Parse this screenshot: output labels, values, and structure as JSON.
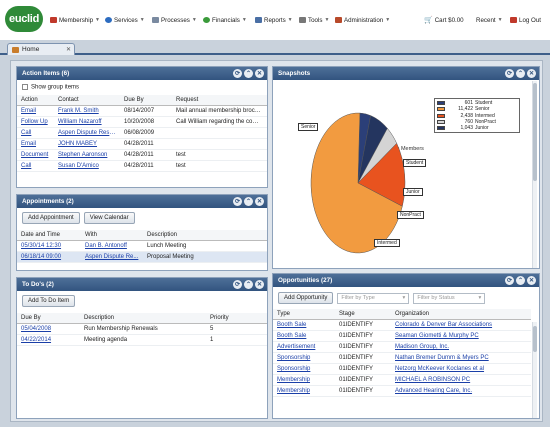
{
  "app": {
    "logo": "euclid"
  },
  "menu": {
    "items": [
      {
        "label": "Membership",
        "icon": "membership-icon",
        "color": "#c0392b"
      },
      {
        "label": "Services",
        "icon": "services-icon",
        "color": "#2d6cc0"
      },
      {
        "label": "Processes",
        "icon": "processes-icon",
        "color": "#7a8aa0"
      },
      {
        "label": "Financials",
        "icon": "financials-icon",
        "color": "#3a9a3a"
      },
      {
        "label": "Reports",
        "icon": "reports-icon",
        "color": "#4a6fa5"
      },
      {
        "label": "Tools",
        "icon": "tools-icon",
        "color": "#777"
      },
      {
        "label": "Administration",
        "icon": "administration-icon",
        "color": "#b84a2a"
      }
    ],
    "cart": "Cart $0.00",
    "recent": "Recent",
    "logout": "Log Out"
  },
  "tab": {
    "label": "Home"
  },
  "action_items": {
    "title": "Action Items (6)",
    "show_group": "Show group items",
    "columns": [
      "Action",
      "Contact",
      "Due By",
      "Request"
    ],
    "rows": [
      [
        "Email",
        "Frank M. Smith",
        "08/14/2007",
        "Mail annual membership broch..."
      ],
      [
        "Follow Up",
        "William Nazaroff",
        "10/20/2008",
        "Call William regarding the comm..."
      ],
      [
        "Call",
        "Aspen Dispute Reso...",
        "06/08/2009",
        ""
      ],
      [
        "Email",
        "JOHN MABEY",
        "04/28/2011",
        ""
      ],
      [
        "Document",
        "Stephen Aaronson",
        "04/28/2011",
        "test"
      ],
      [
        "Call",
        "Susan D'Amico",
        "04/28/2011",
        "test"
      ]
    ]
  },
  "appointments": {
    "title": "Appointments (2)",
    "add": "Add Appointment",
    "view": "View Calendar",
    "columns": [
      "Date and Time",
      "With",
      "Description"
    ],
    "rows": [
      [
        "05/30/14 12:30",
        "Dan B. Antonoff",
        "Lunch Meeting"
      ],
      [
        "06/18/14 09:00",
        "Aspen Dispute Re...",
        "Proposal Meeting"
      ]
    ]
  },
  "todos": {
    "title": "To Do's (2)",
    "add": "Add To Do Item",
    "columns": [
      "Due By",
      "Description",
      "Priority"
    ],
    "rows": [
      [
        "05/04/2008",
        "Run Membership Renewals",
        "5"
      ],
      [
        "04/22/2014",
        "Meeting agenda",
        "1"
      ]
    ]
  },
  "snapshots": {
    "title": "Snapshots",
    "chart_title": "(DEFAULT) Breakdown of Active Members",
    "labels": {
      "senior": "Senior",
      "student": "Student",
      "junior": "Junior",
      "nonpract": "NonPract",
      "intermed": "Intermed"
    }
  },
  "chart_data": {
    "type": "pie",
    "title": "(DEFAULT) Breakdown of Active Members",
    "legend": "top-right",
    "slices": [
      {
        "label": "Student",
        "value": 601,
        "display": "601",
        "color": "#2b3f78"
      },
      {
        "label": "Senior",
        "value": 11422,
        "display": "11,422",
        "color": "#f29b40"
      },
      {
        "label": "Intermed",
        "value": 2438,
        "display": "2,438",
        "color": "#e8531f"
      },
      {
        "label": "NonPract",
        "value": 760,
        "display": "760",
        "color": "#d4d4d4"
      },
      {
        "label": "Junior",
        "value": 1043,
        "display": "1,043",
        "color": "#24355f"
      }
    ]
  },
  "opportunities": {
    "title": "Opportunities (27)",
    "add": "Add Opportunity",
    "filter_type": "Filter by Type",
    "filter_status": "Filter by Status",
    "columns": [
      "Type",
      "Stage",
      "Organization"
    ],
    "rows": [
      [
        "Booth Sale",
        "01IDENTIFY",
        "Colorado & Denver Bar Associations"
      ],
      [
        "Booth Sale",
        "01IDENTIFY",
        "Seaman Giometti & Murphy PC"
      ],
      [
        "Advertisement",
        "01IDENTIFY",
        "Madison Group, Inc."
      ],
      [
        "Sponsorship",
        "01IDENTIFY",
        "Nathan Bremer Dumm & Myers PC"
      ],
      [
        "Sponsorship",
        "01IDENTIFY",
        "Netzorg McKeever Koclanes et al"
      ],
      [
        "Membership",
        "01IDENTIFY",
        "MICHAEL A ROBINSON PC"
      ],
      [
        "Membership",
        "01IDENTIFY",
        "Advanced Hearing Care, Inc."
      ]
    ]
  }
}
